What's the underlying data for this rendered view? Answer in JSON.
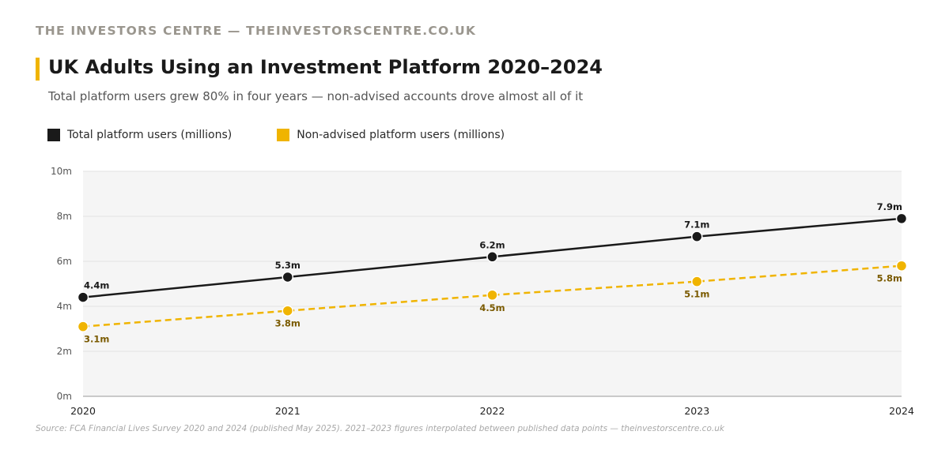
{
  "header": {
    "brand": "THE INVESTORS CENTRE — THEINVESTORSCENTRE.CO.UK",
    "title": "UK Adults Using an Investment Platform 2020–2024",
    "subtitle": "Total platform users grew 80% in four years — non-advised accounts drove almost all of it"
  },
  "footer": {
    "source": "Source: FCA Financial Lives Survey 2020 and 2024 (published May 2025). 2021–2023 figures interpolated between published data points — theinvestorscentre.co.uk"
  },
  "colors": {
    "accent": "#f0b400",
    "total_series": "#1a1a1a",
    "nonadvised_series": "#f0b400",
    "nonadvised_label": "#7a5a00",
    "plot_background": "#f5f5f5"
  },
  "chart_data": {
    "type": "line",
    "x": [
      "2020",
      "2021",
      "2022",
      "2023",
      "2024"
    ],
    "ylim": [
      0,
      10
    ],
    "yticks": [
      0,
      2,
      4,
      6,
      8,
      10
    ],
    "ytick_labels": [
      "0m",
      "2m",
      "4m",
      "6m",
      "8m",
      "10m"
    ],
    "grid": true,
    "legend_position": "top-left",
    "series": [
      {
        "name": "Total platform users (millions)",
        "values": [
          4.4,
          5.3,
          6.2,
          7.1,
          7.9
        ],
        "labels": [
          "4.4m",
          "5.3m",
          "6.2m",
          "7.1m",
          "7.9m"
        ],
        "color": "#1a1a1a",
        "style": "solid",
        "label_position": "above"
      },
      {
        "name": "Non-advised platform users (millions)",
        "values": [
          3.1,
          3.8,
          4.5,
          5.1,
          5.8
        ],
        "labels": [
          "3.1m",
          "3.8m",
          "4.5m",
          "5.1m",
          "5.8m"
        ],
        "color": "#f0b400",
        "style": "dashed",
        "label_position": "below"
      }
    ]
  }
}
